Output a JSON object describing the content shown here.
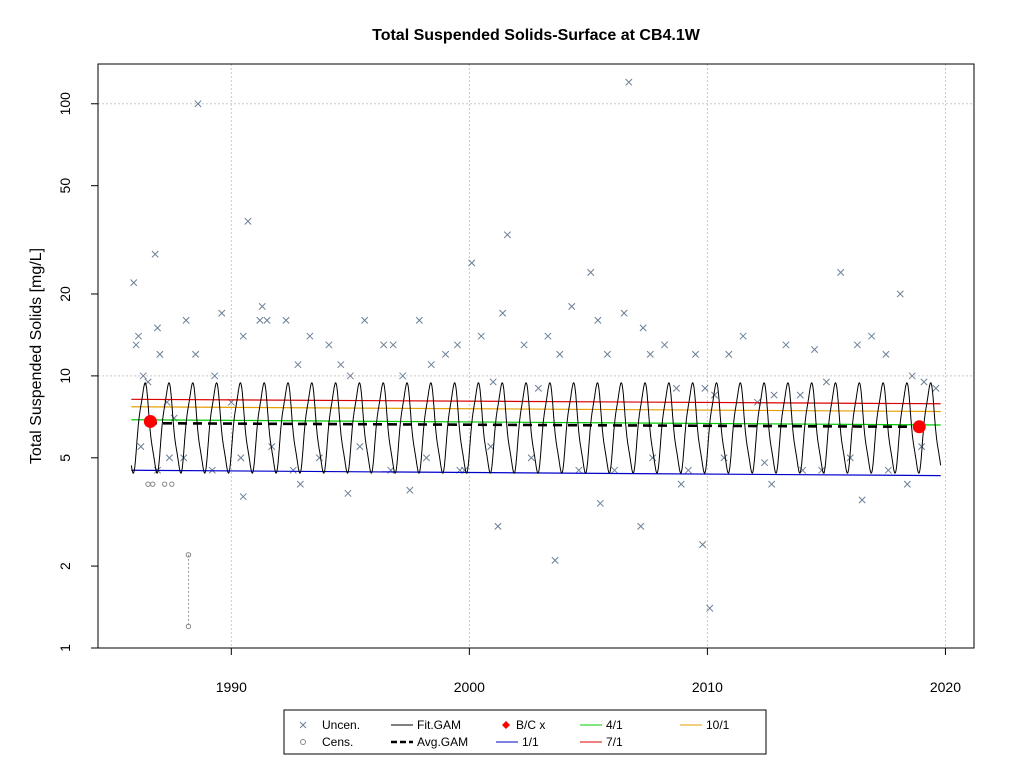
{
  "chart_data": {
    "type": "scatter",
    "title": "Total Suspended Solids-Surface at CB4.1W",
    "xlabel": "",
    "ylabel": "Total Suspended Solids [mg/L]",
    "y_scale": "log",
    "xlim": [
      1984.4,
      2021.2
    ],
    "ylim": [
      1,
      140
    ],
    "x_ticks": [
      1990,
      2000,
      2010,
      2020
    ],
    "x_tick_labels": [
      "1990",
      "2000",
      "2010",
      "2020"
    ],
    "y_ticks": [
      1,
      2,
      5,
      10,
      20,
      50,
      100
    ],
    "y_tick_labels": [
      "1",
      "2",
      "5",
      "10",
      "20",
      "50",
      "100"
    ],
    "grid": true,
    "legend_position": "bottom",
    "legend": [
      {
        "label": "Uncen.",
        "symbol": "x",
        "color": "#6b7f95"
      },
      {
        "label": "Cens.",
        "symbol": "circle",
        "color": "#888888"
      },
      {
        "label": "Fit.GAM",
        "symbol": "line",
        "color": "#000000"
      },
      {
        "label": "Avg.GAM",
        "symbol": "dashed",
        "color": "#000000"
      },
      {
        "label": "B/C x",
        "symbol": "diamond",
        "color": "#ff0000"
      },
      {
        "label": "1/1",
        "symbol": "line",
        "color": "#0000cc"
      },
      {
        "label": "4/1",
        "symbol": "line",
        "color": "#00cc00"
      },
      {
        "label": "7/1",
        "symbol": "line",
        "color": "#dd0000"
      },
      {
        "label": "10/1",
        "symbol": "line",
        "color": "#e69f00"
      }
    ],
    "series": [
      {
        "name": "Fit.GAM",
        "kind": "seasonal",
        "x_start": 1985.8,
        "x_end": 2019.8,
        "low": 4.5,
        "high": 9.2,
        "color": "#000000"
      },
      {
        "name": "Avg.GAM",
        "x": [
          1986.5,
          2018.9
        ],
        "y": [
          6.7,
          6.5
        ],
        "color": "#000000"
      },
      {
        "name": "1/1",
        "x": [
          1985.8,
          2019.8
        ],
        "y": [
          4.5,
          4.3
        ],
        "color": "#0000cc"
      },
      {
        "name": "4/1",
        "x": [
          1985.8,
          2019.8
        ],
        "y": [
          6.9,
          6.6
        ],
        "color": "#00cc00"
      },
      {
        "name": "7/1",
        "x": [
          1985.8,
          2019.8
        ],
        "y": [
          8.2,
          7.9
        ],
        "color": "#dd0000"
      },
      {
        "name": "10/1",
        "x": [
          1985.8,
          2019.8
        ],
        "y": [
          7.7,
          7.4
        ],
        "color": "#e69f00"
      },
      {
        "name": "B/C x",
        "x": [
          1986.6,
          2018.9
        ],
        "y": [
          6.8,
          6.5
        ],
        "color": "#ff0000"
      },
      {
        "name": "Cens.",
        "x": [
          1986.5,
          1986.7,
          1987.2,
          1987.5,
          1988.2,
          1988.2
        ],
        "y": [
          4.0,
          4.0,
          4.0,
          4.0,
          2.2,
          1.2
        ],
        "color": "#888888"
      },
      {
        "name": "Uncen.",
        "color": "#6b7f95",
        "x": [
          1985.9,
          1986.0,
          1986.1,
          1986.3,
          1986.5,
          1986.8,
          1986.9,
          1987.0,
          1987.3,
          1987.6,
          1988.1,
          1988.5,
          1988.6,
          1989.3,
          1989.6,
          1990.0,
          1990.5,
          1990.7,
          1991.2,
          1991.3,
          1991.5,
          1992.3,
          1992.8,
          1993.3,
          1994.1,
          1994.6,
          1995.0,
          1995.6,
          1996.4,
          1996.8,
          1997.2,
          1997.9,
          1998.4,
          1999.0,
          1999.5,
          2000.1,
          2000.5,
          2001.0,
          2001.4,
          2001.6,
          2002.3,
          2002.9,
          2003.3,
          2003.8,
          2004.3,
          2005.1,
          2005.4,
          2005.8,
          2006.5,
          2006.7,
          2007.3,
          2007.6,
          2008.2,
          2008.7,
          2009.5,
          2009.9,
          2010.3,
          2010.9,
          2011.5,
          2012.1,
          2012.8,
          2013.3,
          2013.9,
          2014.5,
          2015.0,
          2015.6,
          2016.3,
          2016.9,
          2017.5,
          2018.1,
          2018.6,
          2019.1,
          2019.6,
          1986.2,
          1986.9,
          1987.4,
          1988.0,
          1989.2,
          1990.4,
          1991.7,
          1992.6,
          1993.7,
          1995.4,
          1996.7,
          1998.2,
          1999.6,
          2000.9,
          2002.6,
          2004.6,
          2006.1,
          2007.7,
          2009.2,
          2010.7,
          2012.4,
          2014.0,
          2016.0,
          2017.6,
          2019.0,
          1990.5,
          1992.9,
          1994.9,
          1997.5,
          1999.8,
          2001.2,
          2003.6,
          2005.5,
          2007.2,
          2008.9,
          2009.8,
          2010.1,
          2012.7,
          2014.8,
          2016.5,
          2018.4
        ],
        "y": [
          22.0,
          13.0,
          14.0,
          10.0,
          9.5,
          28.0,
          15.0,
          12.0,
          8.0,
          7.0,
          16.0,
          12.0,
          100.0,
          10.0,
          17.0,
          8.0,
          14.0,
          37.0,
          16.0,
          18.0,
          16.0,
          16.0,
          11.0,
          14.0,
          13.0,
          11.0,
          10.0,
          16.0,
          13.0,
          13.0,
          10.0,
          16.0,
          11.0,
          12.0,
          13.0,
          26.0,
          14.0,
          9.5,
          17.0,
          33.0,
          13.0,
          9.0,
          14.0,
          12.0,
          18.0,
          24.0,
          16.0,
          12.0,
          17.0,
          120.0,
          15.0,
          12.0,
          13.0,
          9.0,
          12.0,
          9.0,
          8.5,
          12.0,
          14.0,
          8.0,
          8.5,
          13.0,
          8.5,
          12.5,
          9.5,
          24.0,
          13.0,
          14.0,
          12.0,
          20.0,
          10.0,
          9.5,
          9.0,
          5.5,
          4.5,
          5.0,
          5.0,
          4.5,
          5.0,
          5.5,
          4.5,
          5.0,
          5.5,
          4.5,
          5.0,
          4.5,
          5.5,
          5.0,
          4.5,
          4.5,
          5.0,
          4.5,
          5.0,
          4.8,
          4.5,
          5.0,
          4.5,
          5.5,
          3.6,
          4.0,
          3.7,
          3.8,
          4.5,
          2.8,
          2.1,
          3.4,
          2.8,
          4.0,
          2.4,
          1.4,
          4.0,
          4.5,
          3.5,
          4.0
        ]
      }
    ]
  }
}
